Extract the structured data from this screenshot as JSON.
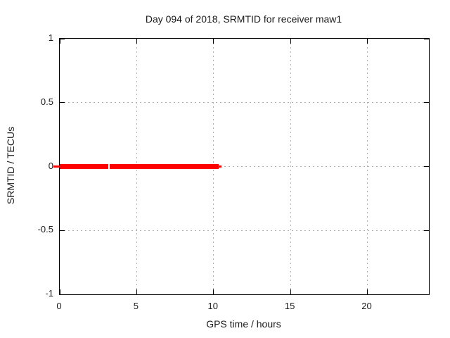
{
  "chart_data": {
    "type": "line",
    "title": "Day 094 of 2018, SRMTID for receiver maw1",
    "xlabel": "GPS time / hours",
    "ylabel": "SRMTID / TECUs",
    "xlim": [
      0,
      24
    ],
    "ylim": [
      -1,
      1
    ],
    "xticks": [
      0,
      5,
      10,
      15,
      20
    ],
    "xtick_labels": [
      "0",
      "5",
      "10",
      "15",
      "20"
    ],
    "yticks": [
      -1,
      -0.5,
      0,
      0.5,
      1
    ],
    "ytick_labels": [
      "-1",
      "-0.5",
      "0",
      "0.5",
      "1"
    ],
    "grid": true,
    "grid_style": "dotted",
    "legend": "none",
    "series": [
      {
        "name": "SRMTID",
        "color": "#ff0000",
        "y_value": 0,
        "description": "SRMTID stays at 0 TECUs from 0 h to about 10.5 h GPS time; no data after about 10.5 h; brief data gap near 3.2 h",
        "segments": [
          {
            "x_start": -0.4,
            "x_end": 0,
            "thickness_px": 3
          },
          {
            "x_start": 0,
            "x_end": 3.14,
            "thickness_px": 7
          },
          {
            "x_start": 3.23,
            "x_end": 10.33,
            "thickness_px": 7
          },
          {
            "x_start": 10.33,
            "x_end": 10.5,
            "thickness_px": 3
          }
        ]
      }
    ],
    "colors": {
      "background": "#ffffff",
      "frame": "#000000",
      "grid": "#b0b0b0",
      "text": "#1a1a1a",
      "series": "#ff0000"
    }
  }
}
